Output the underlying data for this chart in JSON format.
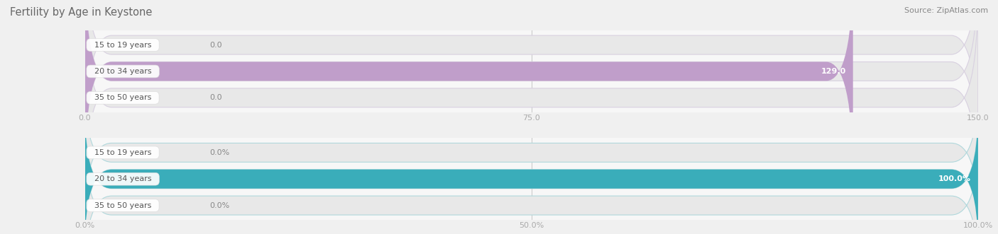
{
  "title": "Fertility by Age in Keystone",
  "source": "Source: ZipAtlas.com",
  "top_chart": {
    "categories": [
      "15 to 19 years",
      "20 to 34 years",
      "35 to 50 years"
    ],
    "values": [
      0.0,
      129.0,
      0.0
    ],
    "bar_color": "#c09eca",
    "bar_bg_color": "#e8e8e8",
    "bar_outline_color": "#d8d0e0",
    "xlim": [
      0,
      150
    ],
    "xticks": [
      0.0,
      75.0,
      150.0
    ],
    "xtick_labels": [
      "0.0",
      "75.0",
      "150.0"
    ]
  },
  "bottom_chart": {
    "categories": [
      "15 to 19 years",
      "20 to 34 years",
      "35 to 50 years"
    ],
    "values": [
      0.0,
      100.0,
      0.0
    ],
    "bar_color": "#3aadba",
    "bar_bg_color": "#e8e8e8",
    "bar_outline_color": "#b0d8dc",
    "xlim": [
      0,
      100
    ],
    "xticks": [
      0.0,
      50.0,
      100.0
    ],
    "xtick_labels": [
      "0.0%",
      "50.0%",
      "100.0%"
    ]
  },
  "background_color": "#f7f7f7",
  "fig_background": "#f0f0f0",
  "label_values_top": [
    "0.0",
    "129.0",
    "0.0"
  ],
  "label_values_bottom": [
    "0.0%",
    "100.0%",
    "0.0%"
  ],
  "label_color_top_inside": "#ffffff",
  "label_color_top_outside": "#999999",
  "label_color_bottom_inside": "#ffffff",
  "label_color_bottom_outside": "#999999",
  "cat_label_color": "#555555",
  "grid_color": "#cccccc",
  "tick_color": "#aaaaaa"
}
